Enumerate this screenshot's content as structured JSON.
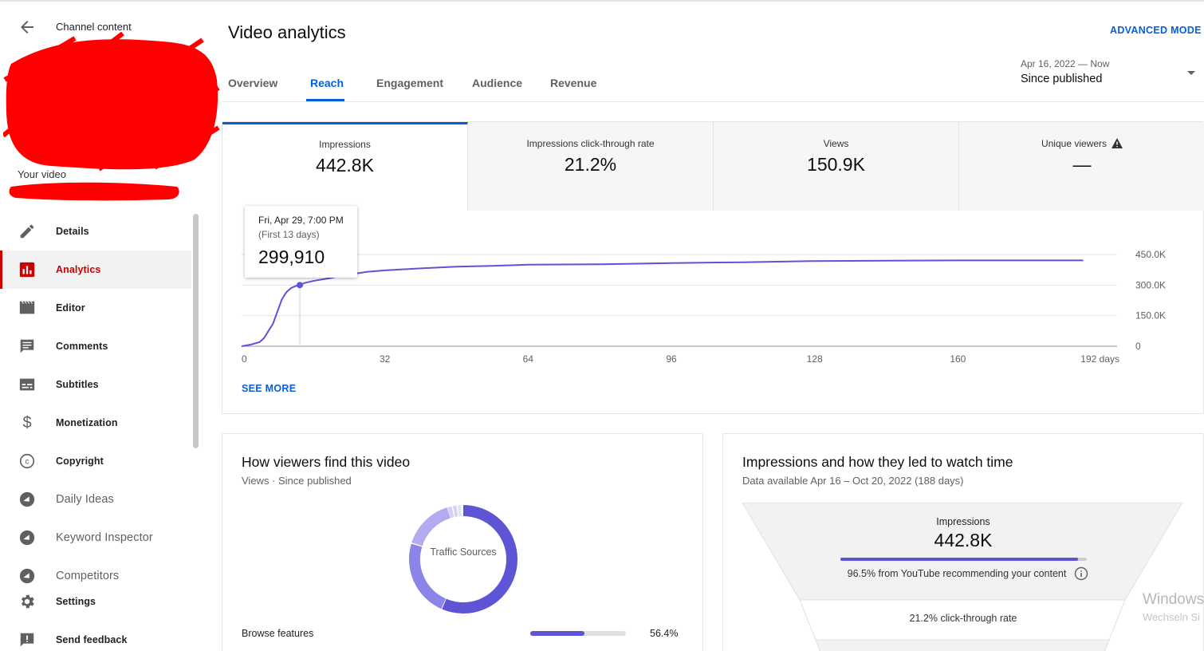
{
  "sidebar": {
    "back_label": "Channel content",
    "your_video": "Your video",
    "items": [
      {
        "label": "Details",
        "icon": "pencil-icon"
      },
      {
        "label": "Analytics",
        "icon": "analytics-icon",
        "active": true
      },
      {
        "label": "Editor",
        "icon": "clapper-icon"
      },
      {
        "label": "Comments",
        "icon": "comment-icon"
      },
      {
        "label": "Subtitles",
        "icon": "subtitles-icon"
      },
      {
        "label": "Monetization",
        "icon": "dollar-icon"
      },
      {
        "label": "Copyright",
        "icon": "copyright-icon"
      },
      {
        "label": "Daily Ideas",
        "icon": "extension-icon"
      },
      {
        "label": "Keyword Inspector",
        "icon": "extension-icon"
      },
      {
        "label": "Competitors",
        "icon": "extension-icon"
      },
      {
        "label": "Settings",
        "icon": "gear-icon"
      },
      {
        "label": "Send feedback",
        "icon": "feedback-icon"
      }
    ]
  },
  "header": {
    "title": "Video analytics",
    "advanced_mode": "ADVANCED MODE",
    "tabs": [
      "Overview",
      "Reach",
      "Engagement",
      "Audience",
      "Revenue"
    ],
    "active_tab": "Reach",
    "date_range": "Apr 16, 2022 — Now",
    "date_label": "Since published"
  },
  "metrics": [
    {
      "label": "Impressions",
      "value": "442.8K"
    },
    {
      "label": "Impressions click-through rate",
      "value": "21.2%"
    },
    {
      "label": "Views",
      "value": "150.9K"
    },
    {
      "label": "Unique viewers",
      "value": "—"
    }
  ],
  "tooltip": {
    "date": "Fri, Apr 29, 7:00 PM",
    "sub": "(First 13 days)",
    "value": "299,910"
  },
  "see_more": "SEE MORE",
  "colors": {
    "accent": "#065fd4",
    "line": "#5d54d6",
    "active_nav": "#cc0000"
  },
  "chart_data": {
    "type": "line",
    "title": "",
    "xlabel": "days",
    "ylabel": "",
    "x_ticks": [
      "0",
      "32",
      "64",
      "96",
      "128",
      "160",
      "192 days"
    ],
    "y_ticks": [
      "0",
      "150.0K",
      "300.0K",
      "450.0K"
    ],
    "xlim": [
      0,
      192
    ],
    "ylim": [
      0,
      450000
    ],
    "grid": true,
    "series": [
      {
        "x": [
          0,
          2,
          4,
          5,
          6,
          7,
          8,
          9,
          10,
          11,
          12,
          13,
          14,
          16,
          18,
          20,
          22,
          25,
          28,
          32,
          40,
          48,
          56,
          64,
          80,
          96,
          112,
          128,
          144,
          160,
          176,
          188
        ],
        "y": [
          0,
          8000,
          20000,
          40000,
          75000,
          110000,
          170000,
          230000,
          265000,
          285000,
          295000,
          299910,
          310000,
          320000,
          328000,
          335000,
          345000,
          355000,
          365000,
          372000,
          382000,
          390000,
          394000,
          400000,
          402000,
          408000,
          412000,
          418000,
          420000,
          421000,
          421000,
          421000
        ]
      }
    ],
    "highlight": {
      "x": 13,
      "y": 299910
    }
  },
  "traffic_card": {
    "title": "How viewers find this video",
    "subtitle": "Views · Since published",
    "donut_label": "Traffic Sources",
    "top_source": {
      "label": "Browse features",
      "percent_text": "56.4%",
      "fraction": 0.564
    }
  },
  "funnel_card": {
    "title": "Impressions and how they led to watch time",
    "subtitle": "Data available Apr 16 – Oct 20, 2022 (188 days)",
    "impressions_label": "Impressions",
    "impressions_value": "442.8K",
    "recommended_fraction": 0.965,
    "recommended_note": "96.5% from YouTube recommending your content",
    "ctr_note": "21.2% click-through rate"
  },
  "watermark": {
    "line1": "Windows",
    "line2": "Wechseln Si"
  }
}
